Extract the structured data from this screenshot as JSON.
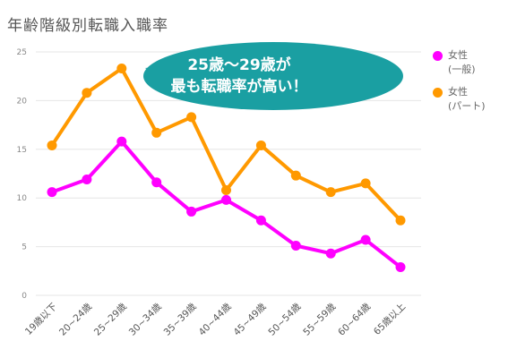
{
  "colors": {
    "female_general": "#ff00ff",
    "female_part": "#ff9900",
    "callout_fill": "#1a9fa2",
    "callout_text": "#ffffff",
    "axis_text": "#888888",
    "grid": "#e6e6e6"
  },
  "chart_data": {
    "type": "line",
    "title": "年齢階級別転職入職率",
    "xlabel": "",
    "ylabel": "",
    "ylim": [
      0,
      25
    ],
    "yticks": [
      0,
      5,
      10,
      15,
      20,
      25
    ],
    "grid": "horizontal",
    "legend_position": "right",
    "categories": [
      "19歳以下",
      "20~24歳",
      "25~29歳",
      "30~34歳",
      "35~39歳",
      "40~44歳",
      "45~49歳",
      "50~54歳",
      "55~59歳",
      "60~64歳",
      "65歳以上"
    ],
    "series": [
      {
        "name": "女性(一般)",
        "legend_lines": [
          "女性",
          "(一般)"
        ],
        "color": "#ff00ff",
        "values": [
          10.6,
          11.9,
          15.8,
          11.6,
          8.6,
          9.8,
          7.7,
          5.1,
          4.3,
          5.7,
          2.9
        ]
      },
      {
        "name": "女性(パート)",
        "legend_lines": [
          "女性",
          "(パート)"
        ],
        "color": "#ff9900",
        "values": [
          15.4,
          20.8,
          23.3,
          16.7,
          18.3,
          10.8,
          15.4,
          12.3,
          10.6,
          11.5,
          7.7
        ]
      }
    ],
    "annotation": {
      "lines": [
        "25歳～29歳が",
        "最も転職率が高い！"
      ],
      "points_to_category": "25~29歳"
    }
  }
}
